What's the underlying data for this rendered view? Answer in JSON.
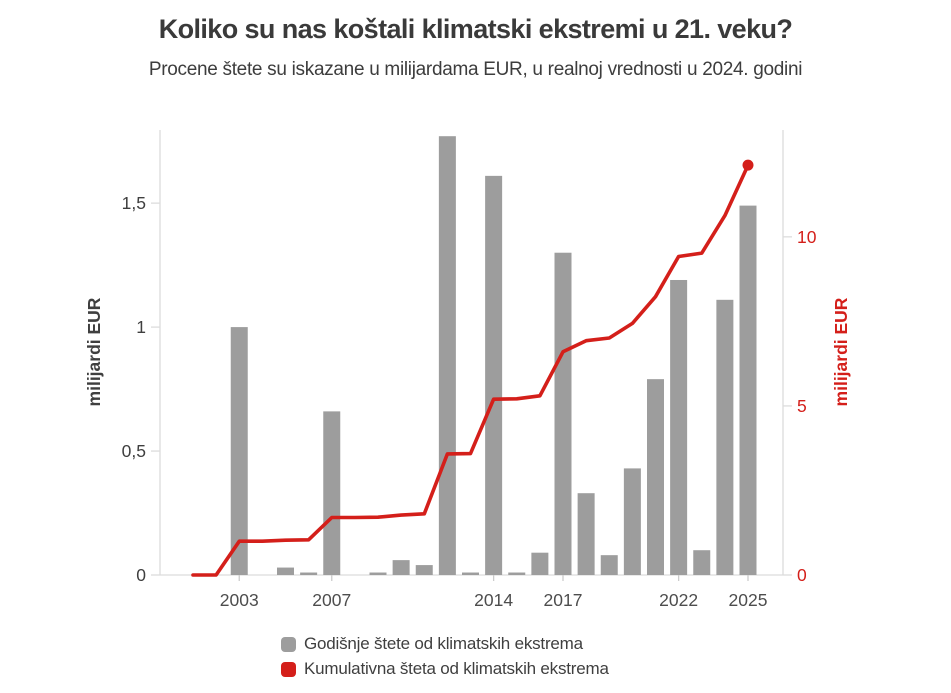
{
  "header": {
    "title": "Koliko su nas koštali klimatski ekstremi u 21. veku?",
    "subtitle": "Procene štete su iskazane u milijardama EUR, u realnoj vrednosti u 2024. godini"
  },
  "legend": {
    "items": [
      {
        "label": "Godišnje štete od klimatskih ekstrema",
        "color": "#9d9d9d",
        "swatch": "rounded-square"
      },
      {
        "label": "Kumulativna šteta od klimatskih ekstrema",
        "color": "#d41f1a",
        "swatch": "rounded-square"
      }
    ]
  },
  "chart_data": {
    "type": "bar+line",
    "title": "Koliko su nas koštali klimatski ekstremi u 21. veku?",
    "subtitle": "Procene štete su iskazane u milijardama EUR, u realnoj vrednosti u 2024. godini",
    "x": [
      2001,
      2002,
      2003,
      2004,
      2005,
      2006,
      2007,
      2008,
      2009,
      2010,
      2011,
      2012,
      2013,
      2014,
      2015,
      2016,
      2017,
      2018,
      2019,
      2020,
      2021,
      2022,
      2023,
      2024,
      2025
    ],
    "series": [
      {
        "name": "Godišnje štete od klimatskih ekstrema",
        "type": "bar",
        "axis": "left",
        "color": "#9d9d9d",
        "values": [
          0,
          0,
          1.0,
          0,
          0.03,
          0.01,
          0.66,
          0,
          0.01,
          0.06,
          0.04,
          1.77,
          0.01,
          1.61,
          0.01,
          0.09,
          1.3,
          0.33,
          0.08,
          0.43,
          0.79,
          1.19,
          0.1,
          1.11,
          1.49
        ]
      },
      {
        "name": "Kumulativna šteta od klimatskih ekstrema",
        "type": "line",
        "axis": "right",
        "color": "#d41f1a",
        "end_dot": true,
        "values": [
          0,
          0,
          1.0,
          1.0,
          1.03,
          1.04,
          1.7,
          1.7,
          1.71,
          1.77,
          1.81,
          3.58,
          3.59,
          5.2,
          5.21,
          5.3,
          6.6,
          6.93,
          7.01,
          7.44,
          8.23,
          9.42,
          9.52,
          10.63,
          12.12
        ]
      }
    ],
    "left_axis": {
      "title": "milijardi EUR",
      "ticks": [
        0,
        0.5,
        1,
        1.5
      ],
      "tick_labels": [
        "0",
        "0,5",
        "1",
        "1,5"
      ],
      "range": [
        0,
        1.795
      ],
      "color": "#3f3f3f"
    },
    "right_axis": {
      "title": "milijardi EUR",
      "ticks": [
        0,
        5,
        10
      ],
      "tick_labels": [
        "0",
        "5",
        "10"
      ],
      "range": [
        0,
        13.16
      ],
      "color": "#d41f1a"
    },
    "x_axis": {
      "labeled_years": [
        2003,
        2007,
        2014,
        2017,
        2022,
        2025
      ],
      "tick_color": "#cccccc",
      "label_color": "#4d4d4d"
    },
    "grid": false,
    "legend_position": "bottom",
    "axis_line_color": "#dcdcdc"
  }
}
